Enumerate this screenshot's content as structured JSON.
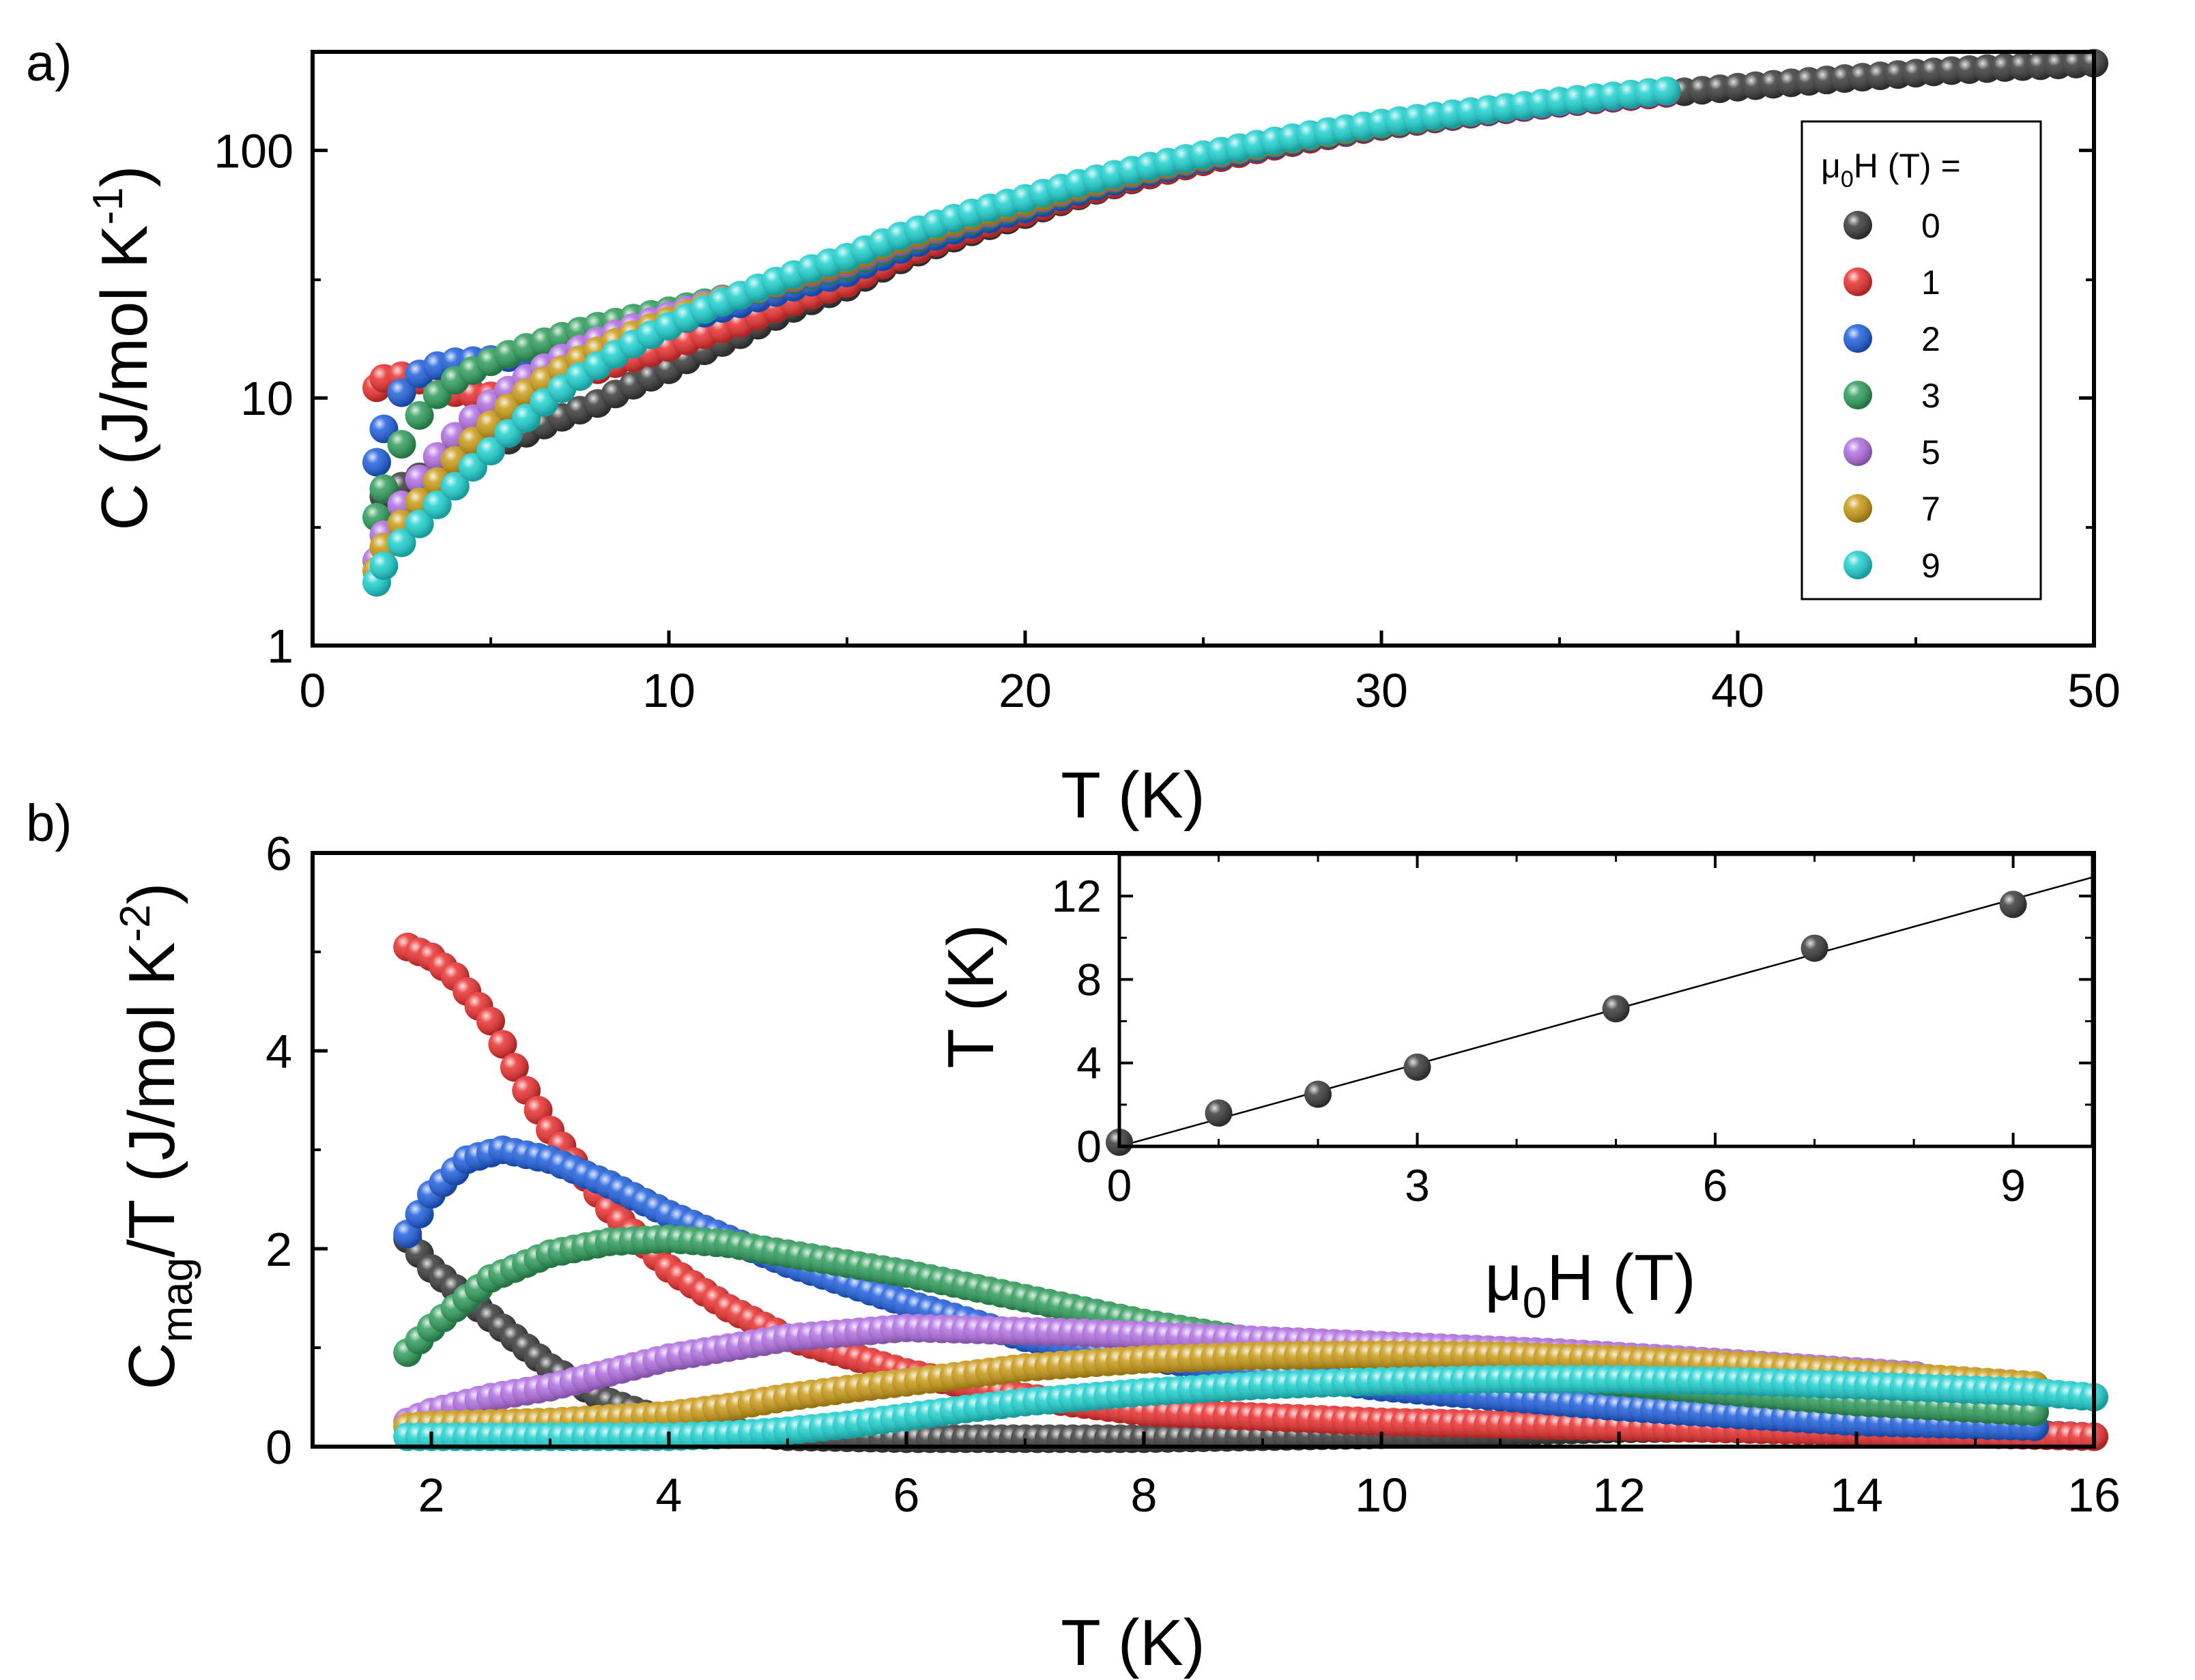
{
  "chart_data": [
    {
      "panel": "a)",
      "type": "scatter",
      "xlabel": "T (K)",
      "ylabel": "C (J/mol K-1)",
      "ylabel_parts": {
        "main": "C (J/mol K",
        "sup": "-1",
        "end": ")"
      },
      "xlim": [
        0,
        50
      ],
      "ylim": [
        1,
        250
      ],
      "yscale": "log",
      "xticks": [
        0,
        10,
        20,
        30,
        40,
        50
      ],
      "xtick_labels": [
        "0",
        "10",
        "20",
        "30",
        "40",
        "50"
      ],
      "yticks": [
        1,
        10,
        100
      ],
      "ytick_labels": [
        "1",
        "10",
        "100"
      ],
      "legend": {
        "title": "μ0H (T) =",
        "title_parts": {
          "pre": "μ",
          "sub": "0",
          "post": "H (T) ="
        },
        "placement": "right"
      },
      "series": [
        {
          "name": "0",
          "color": "#3a3a3a",
          "x": [
            2,
            3,
            4,
            5,
            6,
            8,
            10,
            12,
            15,
            20,
            25,
            30,
            35,
            40,
            42,
            44,
            46,
            48,
            50
          ],
          "y": [
            4,
            4.8,
            5.5,
            6.3,
            7.2,
            9.5,
            13,
            18,
            28,
            55,
            90,
            125,
            155,
            180,
            190,
            200,
            210,
            218,
            225
          ]
        },
        {
          "name": "1",
          "color": "#e8302f",
          "x": [
            1.8,
            2,
            2.5,
            3,
            3.5,
            4,
            5,
            6,
            8,
            10,
            12,
            15,
            20,
            25,
            30,
            35,
            38
          ],
          "y": [
            11,
            12,
            12.3,
            11.8,
            11,
            10.5,
            10.2,
            10.8,
            13,
            16,
            20,
            29,
            56,
            90,
            125,
            155,
            170
          ]
        },
        {
          "name": "2",
          "color": "#1f5fdc",
          "x": [
            1.8,
            2,
            2.5,
            3,
            3.5,
            4,
            5,
            6,
            8,
            10,
            12,
            15,
            20,
            25,
            30,
            35,
            38
          ],
          "y": [
            5.5,
            7.5,
            10.5,
            12.5,
            13.5,
            14,
            14.3,
            14.8,
            17,
            20,
            24,
            32,
            58,
            92,
            126,
            156,
            172
          ]
        },
        {
          "name": "3",
          "color": "#2f9c5a",
          "x": [
            1.8,
            2,
            2.5,
            3,
            3.5,
            4,
            5,
            6,
            8,
            10,
            12,
            15,
            20,
            25,
            30,
            35,
            38
          ],
          "y": [
            3.3,
            4.3,
            6.5,
            8.5,
            10.3,
            11.8,
            14,
            16,
            19.5,
            22.5,
            26,
            34,
            60,
            93,
            127,
            157,
            173
          ]
        },
        {
          "name": "5",
          "color": "#b06ee0",
          "x": [
            1.8,
            2,
            2.5,
            3,
            3.5,
            4,
            5,
            6,
            8,
            10,
            12,
            15,
            20,
            25,
            30,
            35,
            38
          ],
          "y": [
            2.2,
            2.8,
            3.7,
            4.7,
            5.8,
            7,
            9.5,
            12,
            17,
            21.5,
            26,
            35,
            61,
            94,
            128,
            157,
            173
          ]
        },
        {
          "name": "7",
          "color": "#c99a16",
          "x": [
            1.8,
            2,
            2.5,
            3,
            3.5,
            4,
            5,
            6,
            8,
            10,
            12,
            15,
            20,
            25,
            30,
            35,
            38
          ],
          "y": [
            2,
            2.5,
            3.1,
            3.8,
            4.6,
            5.6,
            7.8,
            10.5,
            15.5,
            20.5,
            26,
            36,
            62,
            95,
            128,
            158,
            174
          ]
        },
        {
          "name": "9",
          "color": "#1ed0cf",
          "x": [
            1.8,
            2,
            2.5,
            3,
            3.5,
            4,
            5,
            6,
            8,
            10,
            12,
            15,
            20,
            25,
            30,
            35,
            38
          ],
          "y": [
            1.8,
            2.1,
            2.6,
            3.1,
            3.7,
            4.4,
            6.1,
            8.3,
            13.5,
            19.5,
            26,
            37,
            64,
            96,
            129,
            158,
            174
          ]
        }
      ]
    },
    {
      "panel": "b)",
      "type": "scatter",
      "xlabel": "T (K)",
      "ylabel": "Cmag/T (J/mol K-2)",
      "ylabel_parts": {
        "main": "C",
        "sub": "mag",
        "mid": "/T (J/mol K",
        "sup": "-2",
        "end": ")"
      },
      "xlim": [
        1,
        16
      ],
      "ylim": [
        0,
        6
      ],
      "xticks": [
        2,
        4,
        6,
        8,
        10,
        12,
        14,
        16
      ],
      "xtick_labels": [
        "2",
        "4",
        "6",
        "8",
        "10",
        "12",
        "14",
        "16"
      ],
      "yticks": [
        0,
        2,
        4,
        6
      ],
      "ytick_labels": [
        "0",
        "2",
        "4",
        "6"
      ],
      "series": [
        {
          "name": "0",
          "color": "#3a3a3a",
          "x": [
            1.8,
            2,
            2.3,
            2.6,
            3,
            3.5,
            4,
            4.5,
            5,
            6,
            8,
            10,
            12,
            14,
            16
          ],
          "y": [
            2.1,
            1.8,
            1.5,
            1.2,
            0.8,
            0.45,
            0.25,
            0.15,
            0.1,
            0.08,
            0.08,
            0.12,
            0.18,
            0.2,
            0.1
          ]
        },
        {
          "name": "1",
          "color": "#e8302f",
          "x": [
            1.8,
            2,
            2.2,
            2.5,
            2.8,
            3,
            3.5,
            4,
            4.5,
            5,
            6,
            7,
            8,
            10,
            12,
            14,
            16
          ],
          "y": [
            5.05,
            4.95,
            4.75,
            4.3,
            3.6,
            3.2,
            2.4,
            1.8,
            1.4,
            1.1,
            0.75,
            0.5,
            0.35,
            0.25,
            0.2,
            0.15,
            0.1
          ]
        },
        {
          "name": "2",
          "color": "#1f5fdc",
          "x": [
            1.8,
            2,
            2.3,
            2.6,
            3,
            3.5,
            4,
            4.5,
            5,
            6,
            7,
            8,
            9,
            10,
            11,
            12,
            13,
            14,
            15.5
          ],
          "y": [
            2.15,
            2.55,
            2.9,
            3.0,
            2.9,
            2.65,
            2.35,
            2.1,
            1.85,
            1.45,
            1.1,
            0.9,
            0.75,
            0.6,
            0.5,
            0.4,
            0.32,
            0.25,
            0.2
          ]
        },
        {
          "name": "3",
          "color": "#2f9c5a",
          "x": [
            1.8,
            2,
            2.5,
            3,
            3.5,
            4,
            4.5,
            5,
            6,
            7,
            8,
            9,
            10,
            11,
            12,
            13,
            14,
            15.5
          ],
          "y": [
            0.95,
            1.2,
            1.7,
            1.95,
            2.07,
            2.1,
            2.05,
            1.95,
            1.75,
            1.5,
            1.25,
            1.05,
            0.9,
            0.75,
            0.65,
            0.55,
            0.45,
            0.35
          ]
        },
        {
          "name": "5",
          "color": "#b06ee0",
          "x": [
            1.8,
            2,
            2.5,
            3,
            3.5,
            4,
            4.5,
            5,
            5.5,
            6,
            6.6,
            7.5,
            8.5,
            9.5,
            10.5,
            11.5,
            12.5,
            13.5,
            14.5
          ],
          "y": [
            0.25,
            0.35,
            0.5,
            0.6,
            0.75,
            0.9,
            1.0,
            1.1,
            1.15,
            1.2,
            1.18,
            1.15,
            1.1,
            1.05,
            1.0,
            0.95,
            0.88,
            0.8,
            0.72
          ]
        },
        {
          "name": "7",
          "color": "#c99a16",
          "x": [
            1.8,
            2,
            3,
            4,
            4.5,
            5,
            5.5,
            6,
            7,
            8,
            9,
            10,
            11,
            12,
            13,
            14,
            15.5
          ],
          "y": [
            0.2,
            0.22,
            0.25,
            0.32,
            0.4,
            0.5,
            0.58,
            0.65,
            0.8,
            0.88,
            0.92,
            0.93,
            0.92,
            0.88,
            0.82,
            0.74,
            0.62
          ]
        },
        {
          "name": "9",
          "color": "#1ed0cf",
          "x": [
            1.8,
            2,
            3,
            4,
            4.5,
            5,
            5.5,
            6,
            6.5,
            7,
            8,
            9,
            10,
            11,
            12,
            13,
            14,
            15.5,
            16
          ],
          "y": [
            0.1,
            0.1,
            0.1,
            0.1,
            0.12,
            0.16,
            0.22,
            0.3,
            0.38,
            0.45,
            0.55,
            0.62,
            0.66,
            0.68,
            0.68,
            0.66,
            0.62,
            0.55,
            0.5
          ]
        }
      ]
    },
    {
      "panel": "b-inset",
      "type": "scatter",
      "xlabel": "μ0H (T)",
      "xlabel_parts": {
        "pre": "μ",
        "sub": "0",
        "post": "H (T)"
      },
      "ylabel": "T (K)",
      "xlim": [
        0,
        9.8
      ],
      "ylim": [
        0,
        14
      ],
      "xticks": [
        0,
        3,
        6,
        9
      ],
      "xtick_labels": [
        "0",
        "3",
        "6",
        "9"
      ],
      "yticks": [
        0,
        4,
        8,
        12
      ],
      "ytick_labels": [
        "0",
        "4",
        "8",
        "12"
      ],
      "series": [
        {
          "name": "",
          "color": "#3a3a3a",
          "x": [
            0,
            1,
            2,
            3,
            5,
            7,
            9
          ],
          "y": [
            0.2,
            1.6,
            2.5,
            3.8,
            6.6,
            9.5,
            11.6
          ]
        }
      ],
      "fit_line": {
        "x": [
          0,
          9.8
        ],
        "y": [
          0,
          12.9
        ]
      }
    }
  ]
}
